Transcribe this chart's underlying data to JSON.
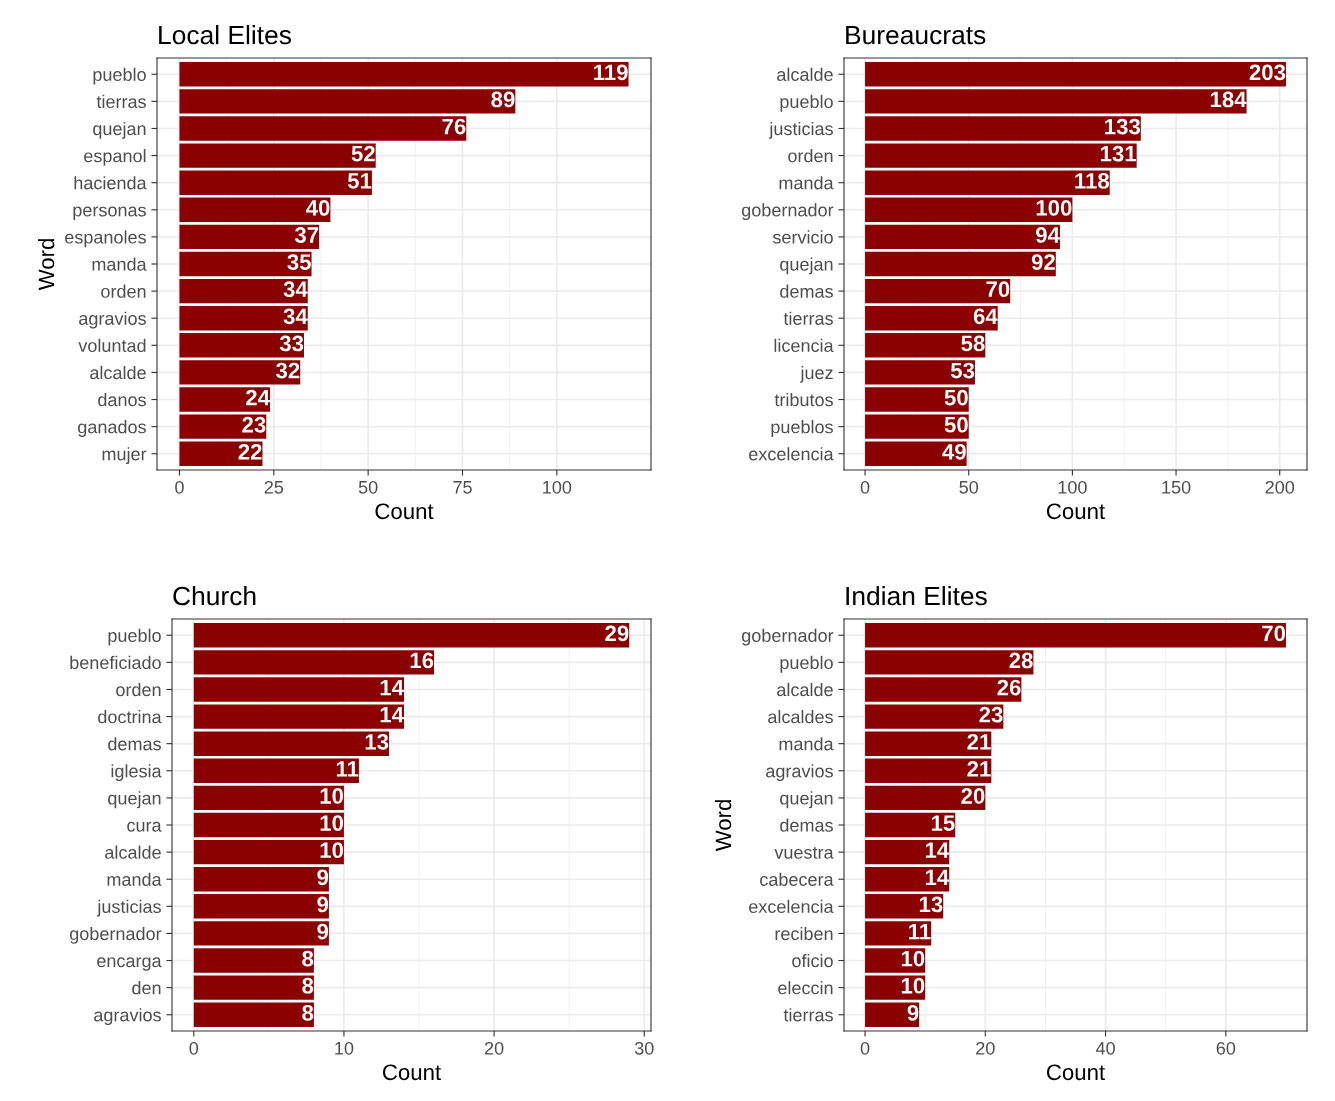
{
  "chart_data": [
    {
      "type": "bar",
      "orientation": "horizontal",
      "title": "Local Elites",
      "xlabel": "Count",
      "ylabel": "Word",
      "categories": [
        "pueblo",
        "tierras",
        "quejan",
        "espanol",
        "hacienda",
        "personas",
        "espanoles",
        "manda",
        "orden",
        "agravios",
        "voluntad",
        "alcalde",
        "danos",
        "ganados",
        "mujer"
      ],
      "values": [
        119,
        89,
        76,
        52,
        51,
        40,
        37,
        35,
        34,
        34,
        33,
        32,
        24,
        23,
        22
      ],
      "color": "#8b0000",
      "xlim": [
        -5.95,
        124.95
      ],
      "xticks": [
        0,
        25,
        50,
        75,
        100
      ],
      "grid": true,
      "data_labels": true
    },
    {
      "type": "bar",
      "orientation": "horizontal",
      "title": "Bureaucrats",
      "xlabel": "Count",
      "categories": [
        "alcalde",
        "pueblo",
        "justicias",
        "orden",
        "manda",
        "gobernador",
        "servicio",
        "quejan",
        "demas",
        "tierras",
        "licencia",
        "juez",
        "tributos",
        "pueblos",
        "excelencia"
      ],
      "values": [
        203,
        184,
        133,
        131,
        118,
        100,
        94,
        92,
        70,
        64,
        58,
        53,
        50,
        50,
        49
      ],
      "color": "#8b0000",
      "xlim": [
        -10.15,
        213.15
      ],
      "xticks": [
        0,
        50,
        100,
        150,
        200
      ],
      "grid": true,
      "data_labels": true
    },
    {
      "type": "bar",
      "orientation": "horizontal",
      "title": "Church",
      "xlabel": "Count",
      "categories": [
        "pueblo",
        "beneficiado",
        "orden",
        "doctrina",
        "demas",
        "iglesia",
        "quejan",
        "cura",
        "alcalde",
        "manda",
        "justicias",
        "gobernador",
        "encarga",
        "den",
        "agravios"
      ],
      "values": [
        29,
        16,
        14,
        14,
        13,
        11,
        10,
        10,
        10,
        9,
        9,
        9,
        8,
        8,
        8
      ],
      "color": "#8b0000",
      "xlim": [
        -1.45,
        30.45
      ],
      "xticks": [
        0,
        10,
        20,
        30
      ],
      "grid": true,
      "data_labels": true
    },
    {
      "type": "bar",
      "orientation": "horizontal",
      "title": "Indian Elites",
      "xlabel": "Count",
      "ylabel": "Word",
      "categories": [
        "gobernador",
        "pueblo",
        "alcalde",
        "alcaldes",
        "manda",
        "agravios",
        "quejan",
        "demas",
        "vuestra",
        "cabecera",
        "excelencia",
        "reciben",
        "oficio",
        "eleccin",
        "tierras"
      ],
      "values": [
        70,
        28,
        26,
        23,
        21,
        21,
        20,
        15,
        14,
        14,
        13,
        11,
        10,
        10,
        9
      ],
      "color": "#8b0000",
      "xlim": [
        -3.5,
        73.5
      ],
      "xticks": [
        0,
        20,
        40,
        60
      ],
      "grid": true,
      "data_labels": true
    }
  ]
}
